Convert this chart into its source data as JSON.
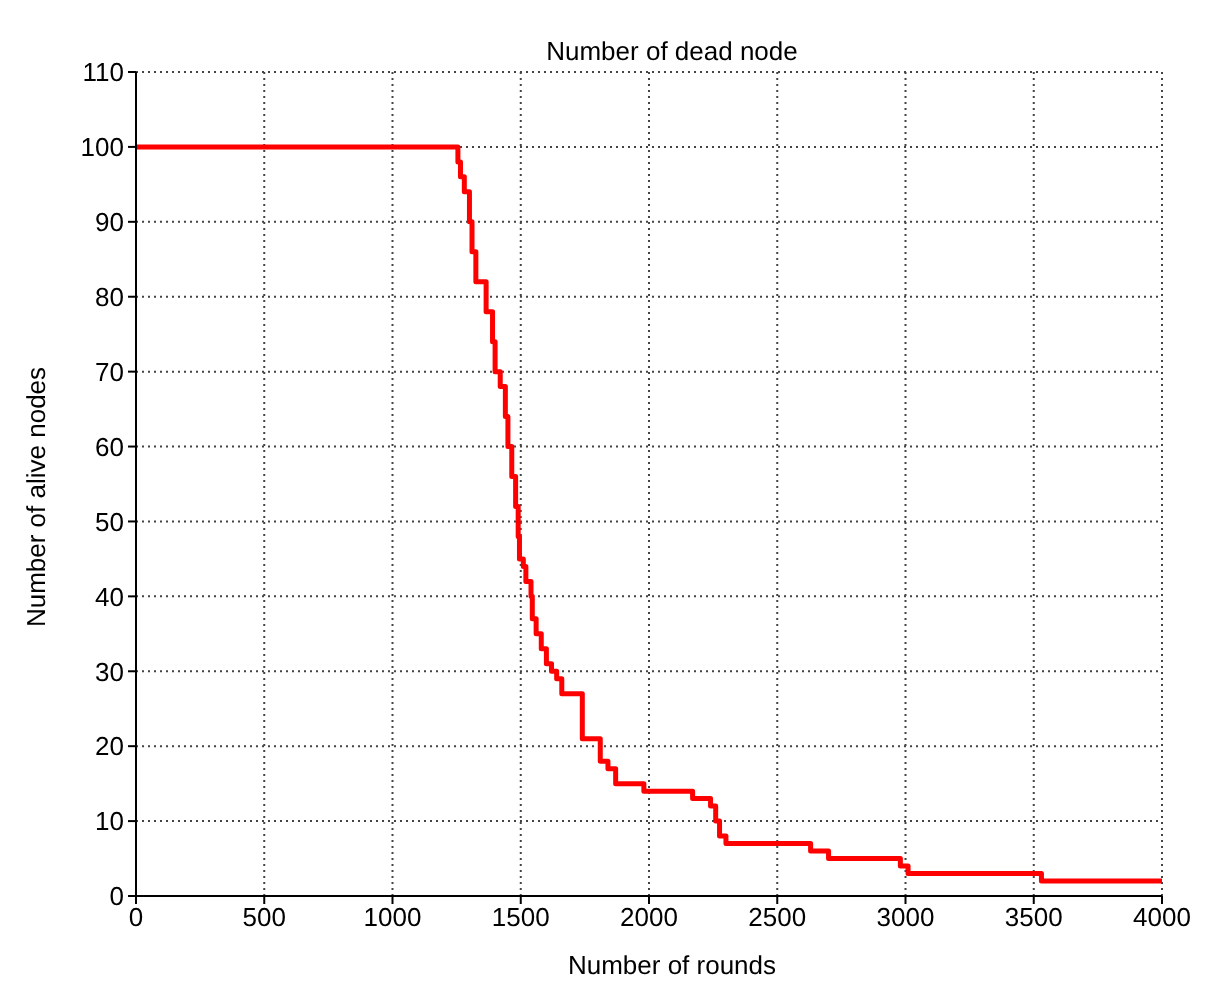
{
  "chart_data": {
    "type": "step",
    "title": "Number of dead node",
    "xlabel": "Number of rounds",
    "ylabel": "Number of alive nodes",
    "x": [
      0,
      1255,
      1265,
      1280,
      1300,
      1310,
      1325,
      1365,
      1390,
      1400,
      1420,
      1440,
      1450,
      1465,
      1480,
      1490,
      1495,
      1510,
      1520,
      1540,
      1545,
      1560,
      1580,
      1600,
      1620,
      1640,
      1660,
      1740,
      1810,
      1840,
      1870,
      1980,
      2170,
      2240,
      2260,
      2275,
      2300,
      2630,
      2700,
      2980,
      3010,
      3530,
      4000
    ],
    "series": [
      {
        "color": "#ff0000",
        "values": [
          100,
          98,
          96,
          94,
          90,
          86,
          82,
          78,
          74,
          70,
          68,
          64,
          60,
          56,
          52,
          48,
          45,
          44,
          42,
          40,
          37,
          35,
          33,
          31,
          30,
          29,
          27,
          21,
          18,
          17,
          15,
          14,
          13,
          12,
          10,
          8,
          7,
          6,
          5,
          4,
          3,
          2,
          2
        ]
      }
    ],
    "xlim": [
      0,
      4000
    ],
    "xticks": [
      0,
      500,
      1000,
      1500,
      2000,
      2500,
      3000,
      3500,
      4000
    ],
    "ylim": [
      0,
      110
    ],
    "yticks": [
      0,
      10,
      20,
      30,
      40,
      50,
      60,
      70,
      80,
      90,
      100,
      110
    ],
    "grid": true,
    "marker": "none",
    "line_style": "solid"
  }
}
